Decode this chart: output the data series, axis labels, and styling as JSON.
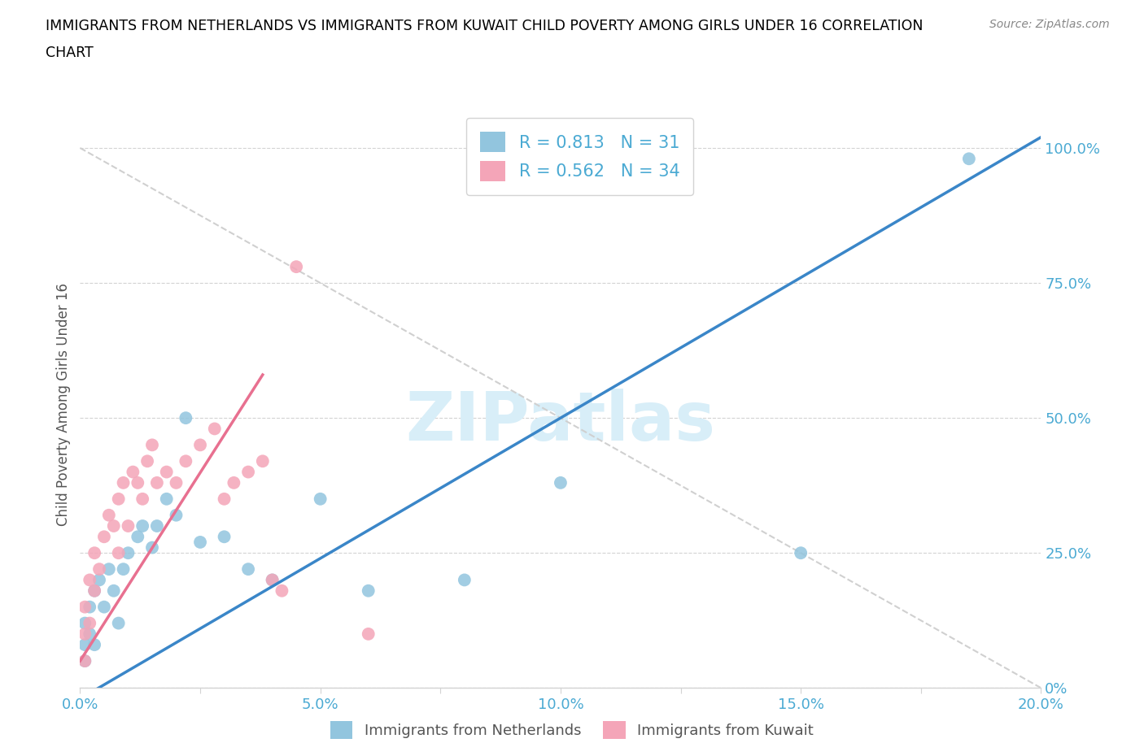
{
  "title_line1": "IMMIGRANTS FROM NETHERLANDS VS IMMIGRANTS FROM KUWAIT CHILD POVERTY AMONG GIRLS UNDER 16 CORRELATION",
  "title_line2": "CHART",
  "source": "Source: ZipAtlas.com",
  "ylabel": "Child Poverty Among Girls Under 16",
  "legend_label1": "Immigrants from Netherlands",
  "legend_label2": "Immigrants from Kuwait",
  "R1": 0.813,
  "N1": 31,
  "R2": 0.562,
  "N2": 34,
  "color1": "#92C5DE",
  "color2": "#F4A5B8",
  "line1_color": "#3A86C8",
  "line2_color": "#E87090",
  "diag_color": "#D0D0D0",
  "watermark_color": "#D8EEF8",
  "xlim": [
    0.0,
    0.2
  ],
  "ylim": [
    0.0,
    1.05
  ],
  "xtick_labels": [
    "0.0%",
    "",
    "5.0%",
    "",
    "10.0%",
    "",
    "15.0%",
    "",
    "20.0%"
  ],
  "xtick_vals": [
    0.0,
    0.025,
    0.05,
    0.075,
    0.1,
    0.125,
    0.15,
    0.175,
    0.2
  ],
  "xtick_show_labels": [
    true,
    false,
    true,
    false,
    true,
    false,
    true,
    false,
    true
  ],
  "ytick_labels_right": [
    "0%",
    "25.0%",
    "50.0%",
    "75.0%",
    "100.0%"
  ],
  "ytick_vals": [
    0.0,
    0.25,
    0.5,
    0.75,
    1.0
  ],
  "nl_line_x": [
    0.0,
    0.2
  ],
  "nl_line_y": [
    -0.02,
    1.02
  ],
  "kw_line_x": [
    0.0,
    0.038
  ],
  "kw_line_y": [
    0.05,
    0.58
  ],
  "diag_line_x": [
    0.0,
    0.2
  ],
  "diag_line_y": [
    1.0,
    0.0
  ],
  "netherlands_x": [
    0.001,
    0.001,
    0.001,
    0.002,
    0.002,
    0.003,
    0.003,
    0.004,
    0.005,
    0.006,
    0.007,
    0.008,
    0.009,
    0.01,
    0.012,
    0.013,
    0.015,
    0.016,
    0.018,
    0.02,
    0.022,
    0.025,
    0.03,
    0.035,
    0.04,
    0.05,
    0.06,
    0.08,
    0.1,
    0.15,
    0.185
  ],
  "netherlands_y": [
    0.05,
    0.08,
    0.12,
    0.1,
    0.15,
    0.08,
    0.18,
    0.2,
    0.15,
    0.22,
    0.18,
    0.12,
    0.22,
    0.25,
    0.28,
    0.3,
    0.26,
    0.3,
    0.35,
    0.32,
    0.5,
    0.27,
    0.28,
    0.22,
    0.2,
    0.35,
    0.18,
    0.2,
    0.38,
    0.25,
    0.98
  ],
  "kuwait_x": [
    0.001,
    0.001,
    0.001,
    0.002,
    0.002,
    0.003,
    0.003,
    0.004,
    0.005,
    0.006,
    0.007,
    0.008,
    0.008,
    0.009,
    0.01,
    0.011,
    0.012,
    0.013,
    0.014,
    0.015,
    0.016,
    0.018,
    0.02,
    0.022,
    0.025,
    0.028,
    0.03,
    0.032,
    0.035,
    0.038,
    0.04,
    0.042,
    0.045,
    0.06
  ],
  "kuwait_y": [
    0.05,
    0.1,
    0.15,
    0.12,
    0.2,
    0.18,
    0.25,
    0.22,
    0.28,
    0.32,
    0.3,
    0.25,
    0.35,
    0.38,
    0.3,
    0.4,
    0.38,
    0.35,
    0.42,
    0.45,
    0.38,
    0.4,
    0.38,
    0.42,
    0.45,
    0.48,
    0.35,
    0.38,
    0.4,
    0.42,
    0.2,
    0.18,
    0.78,
    0.1
  ]
}
